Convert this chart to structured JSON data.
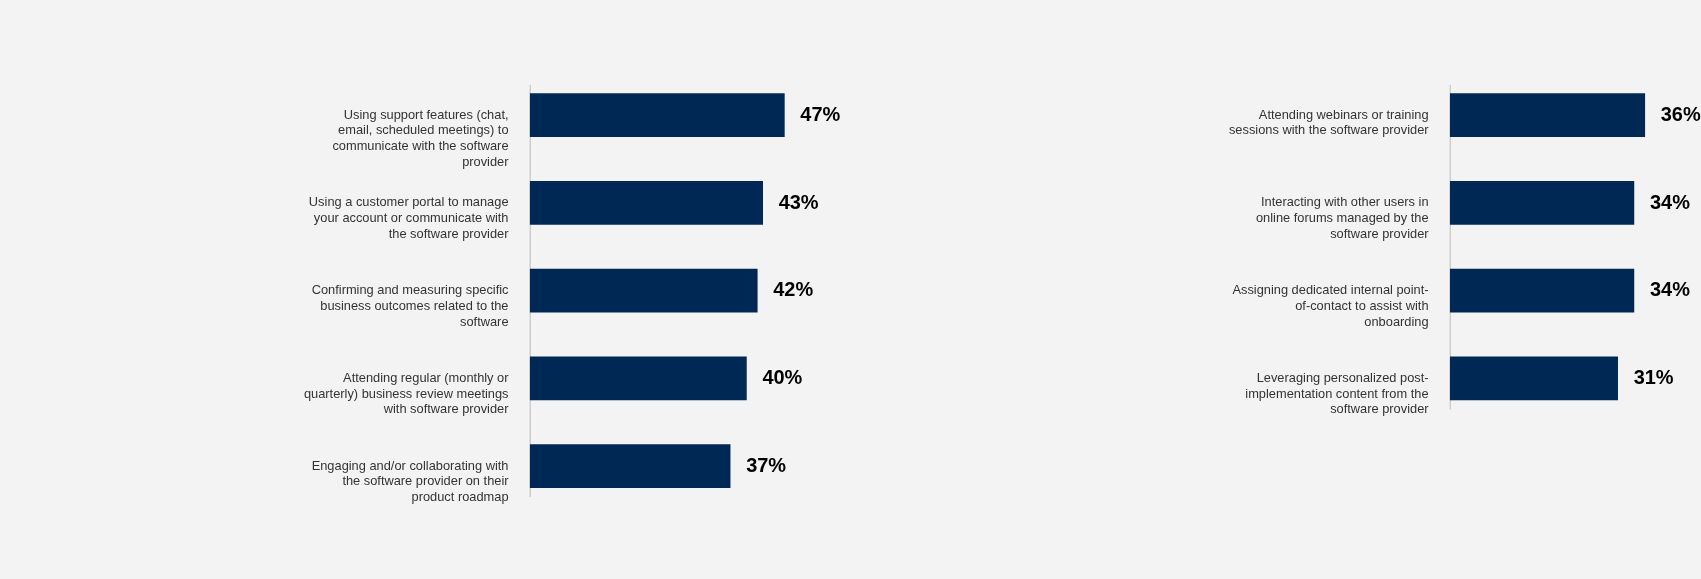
{
  "chart_data": [
    {
      "type": "bar",
      "orientation": "horizontal",
      "categories": [
        "Using support features (chat, email, scheduled meetings) to communicate with the software provider",
        "Using a customer portal to manage your account or communicate with the software provider",
        "Confirming and measuring specific business outcomes related to the software",
        "Attending regular (monthly or quarterly) business review meetings with software provider",
        "Engaging and/or collaborating with the software provider on their product roadmap"
      ],
      "values": [
        47,
        43,
        42,
        40,
        37
      ],
      "value_labels": [
        "47%",
        "43%",
        "42%",
        "40%",
        "37%"
      ],
      "color": "#002855"
    },
    {
      "type": "bar",
      "orientation": "horizontal",
      "categories": [
        "Attending webinars or training sessions with the software provider",
        "Interacting with other users in online forums managed by the software provider",
        "Assigning dedicated internal point-of-contact to assist with onboarding",
        "Leveraging personalized post-implementation content from the software provider"
      ],
      "values": [
        36,
        34,
        34,
        31
      ],
      "value_labels": [
        "36%",
        "34%",
        "34%",
        "31%"
      ],
      "color": "#002855"
    }
  ]
}
